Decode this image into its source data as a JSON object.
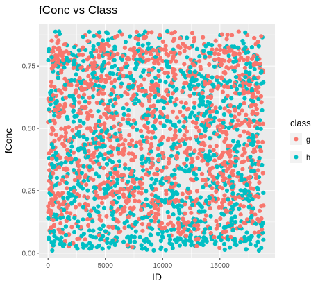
{
  "chart_data": {
    "type": "scatter",
    "title": "fConc vs Class",
    "xlabel": "ID",
    "ylabel": "fConc",
    "xlim": [
      -800,
      19800
    ],
    "ylim": [
      -0.02,
      0.92
    ],
    "x_ticks": [
      0,
      5000,
      10000,
      15000
    ],
    "x_tick_labels": [
      "0",
      "5000",
      "10000",
      "15000"
    ],
    "y_ticks": [
      0.0,
      0.25,
      0.5,
      0.75
    ],
    "y_tick_labels": [
      "0.00",
      "0.25",
      "0.50",
      "0.75"
    ],
    "grid": true,
    "background": "#ebebeb",
    "legend": {
      "title": "class",
      "position": "right",
      "entries": [
        {
          "label": "g",
          "color": "#f8766d"
        },
        {
          "label": "h",
          "color": "#00bfc4"
        }
      ]
    },
    "series": [
      {
        "name": "g",
        "color": "#f8766d",
        "x_range": [
          0,
          18800
        ],
        "y_range": [
          0.02,
          0.89
        ],
        "approx_points": 12332
      },
      {
        "name": "h",
        "color": "#00bfc4",
        "x_range": [
          0,
          18800
        ],
        "y_range": [
          0.01,
          0.89
        ],
        "approx_points": 6688
      }
    ]
  }
}
